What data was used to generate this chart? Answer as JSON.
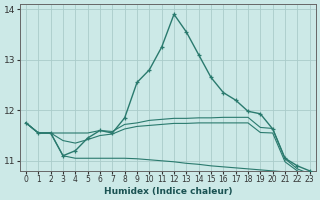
{
  "xlabel": "Humidex (Indice chaleur)",
  "background_color": "#cce9e7",
  "grid_color": "#aaccca",
  "line_color": "#2a7a6e",
  "xlim": [
    -0.5,
    23.5
  ],
  "ylim": [
    10.8,
    14.1
  ],
  "yticks": [
    11,
    12,
    13,
    14
  ],
  "xtick_labels": [
    "0",
    "1",
    "2",
    "3",
    "4",
    "5",
    "6",
    "7",
    "8",
    "9",
    "10",
    "11",
    "12",
    "13",
    "14",
    "15",
    "16",
    "17",
    "18",
    "19",
    "20",
    "21",
    "22",
    "23"
  ],
  "series": [
    {
      "x": [
        0,
        1,
        2,
        3,
        4,
        5,
        6,
        7,
        8,
        9,
        10,
        11,
        12,
        13,
        14,
        15,
        16,
        17,
        18,
        19,
        20,
        21,
        22,
        23
      ],
      "y": [
        11.75,
        11.55,
        11.55,
        11.1,
        11.2,
        11.45,
        11.6,
        11.55,
        11.85,
        12.55,
        12.8,
        13.25,
        13.9,
        13.55,
        13.1,
        12.65,
        12.35,
        12.2,
        11.98,
        11.93,
        11.63,
        11.05,
        10.9,
        10.8
      ],
      "marker": true,
      "linewidth": 1.0
    },
    {
      "x": [
        0,
        1,
        2,
        3,
        4,
        5,
        6,
        7,
        8,
        9,
        10,
        11,
        12,
        13,
        14,
        15,
        16,
        17,
        18,
        19,
        20,
        21,
        22,
        23
      ],
      "y": [
        11.75,
        11.55,
        11.55,
        11.55,
        11.55,
        11.55,
        11.6,
        11.58,
        11.72,
        11.75,
        11.8,
        11.82,
        11.84,
        11.84,
        11.85,
        11.85,
        11.86,
        11.86,
        11.86,
        11.66,
        11.64,
        11.04,
        10.84,
        10.74
      ],
      "marker": false,
      "linewidth": 0.8
    },
    {
      "x": [
        0,
        1,
        2,
        3,
        4,
        5,
        6,
        7,
        8,
        9,
        10,
        11,
        12,
        13,
        14,
        15,
        16,
        17,
        18,
        19,
        20,
        21,
        22,
        23
      ],
      "y": [
        11.75,
        11.55,
        11.55,
        11.4,
        11.35,
        11.42,
        11.5,
        11.53,
        11.63,
        11.68,
        11.7,
        11.72,
        11.74,
        11.74,
        11.75,
        11.75,
        11.75,
        11.75,
        11.75,
        11.56,
        11.55,
        10.98,
        10.8,
        10.7
      ],
      "marker": false,
      "linewidth": 0.8
    },
    {
      "x": [
        0,
        1,
        2,
        3,
        4,
        5,
        6,
        7,
        8,
        9,
        10,
        11,
        12,
        13,
        14,
        15,
        16,
        17,
        18,
        19,
        20,
        21,
        22,
        23
      ],
      "y": [
        11.75,
        11.55,
        11.55,
        11.1,
        11.05,
        11.05,
        11.05,
        11.05,
        11.05,
        11.04,
        11.02,
        11.0,
        10.98,
        10.95,
        10.93,
        10.9,
        10.88,
        10.86,
        10.84,
        10.82,
        10.8,
        10.78,
        10.76,
        10.72
      ],
      "marker": false,
      "linewidth": 0.8
    }
  ]
}
